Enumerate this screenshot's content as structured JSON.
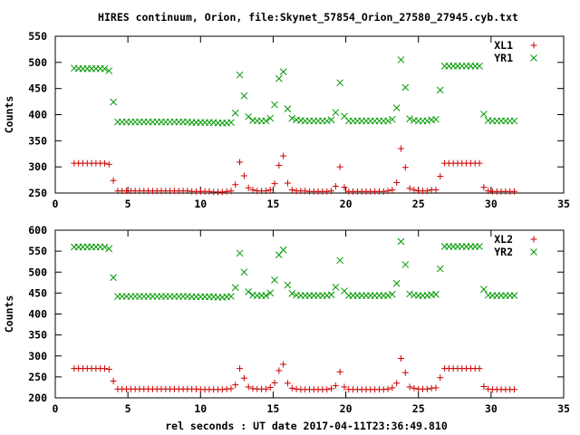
{
  "title": "HIRES continuum, Orion, file:Skynet_57854_Orion_27580_27945.cyb.txt",
  "xlabel": "rel seconds : UT date 2017-04-11T23:36:49.810",
  "colors": {
    "red": "#cc0000",
    "green": "#009900",
    "frame": "#000000"
  },
  "chart_data": [
    {
      "type": "scatter",
      "title": "HIRES continuum, Orion, file:Skynet_57854_Orion_27580_27945.cyb.txt",
      "xlabel": "",
      "ylabel": "Counts",
      "xlim": [
        0,
        35
      ],
      "ylim": [
        250,
        550
      ],
      "xticks": [
        0,
        5,
        10,
        15,
        20,
        25,
        30,
        35
      ],
      "yticks": [
        250,
        300,
        350,
        400,
        450,
        500,
        550
      ],
      "grid": false,
      "legend": "top-right",
      "x": [
        1.3,
        1.6,
        1.9,
        2.2,
        2.5,
        2.8,
        3.1,
        3.4,
        3.7,
        4.0,
        4.3,
        4.6,
        4.9,
        5.2,
        5.5,
        5.8,
        6.1,
        6.4,
        6.7,
        7.0,
        7.3,
        7.6,
        7.9,
        8.2,
        8.5,
        8.8,
        9.1,
        9.4,
        9.7,
        10.0,
        10.3,
        10.6,
        10.9,
        11.2,
        11.5,
        11.8,
        12.1,
        12.4,
        12.7,
        13.0,
        13.3,
        13.6,
        13.9,
        14.2,
        14.5,
        14.8,
        15.1,
        15.4,
        15.7,
        16.0,
        16.3,
        16.6,
        16.9,
        17.2,
        17.5,
        17.8,
        18.1,
        18.4,
        18.7,
        19.0,
        19.3,
        19.6,
        19.9,
        20.2,
        20.5,
        20.8,
        21.1,
        21.4,
        21.7,
        22.0,
        22.3,
        22.6,
        22.9,
        23.2,
        23.5,
        23.8,
        24.1,
        24.4,
        24.7,
        25.0,
        25.3,
        25.6,
        25.9,
        26.2,
        26.5,
        26.8,
        27.1,
        27.4,
        27.7,
        28.0,
        28.3,
        28.6,
        28.9,
        29.2,
        29.5,
        29.8,
        30.1,
        30.4,
        30.7,
        31.0,
        31.3,
        31.6
      ],
      "series": [
        {
          "name": "XL1",
          "marker": "plus",
          "color": "#cc0000",
          "values": [
            307,
            307,
            307,
            307,
            307,
            307,
            307,
            307,
            305,
            274,
            254,
            254,
            254,
            254,
            254,
            254,
            254,
            254,
            254,
            254,
            254,
            254,
            254,
            254,
            254,
            254,
            254,
            253,
            253,
            253,
            253,
            253,
            252,
            252,
            252,
            253,
            254,
            266,
            309,
            283,
            260,
            256,
            254,
            254,
            254,
            256,
            268,
            303,
            321,
            269,
            256,
            254,
            254,
            254,
            253,
            253,
            253,
            253,
            253,
            254,
            263,
            300,
            261,
            253,
            253,
            253,
            253,
            253,
            253,
            253,
            253,
            253,
            254,
            256,
            270,
            335,
            299,
            259,
            256,
            254,
            254,
            254,
            256,
            256,
            282,
            307,
            307,
            307,
            307,
            307,
            307,
            307,
            307,
            307,
            261,
            254,
            253,
            253,
            253,
            253,
            253,
            253
          ]
        },
        {
          "name": "YR1",
          "marker": "cross",
          "color": "#009900",
          "values": [
            489,
            488,
            488,
            488,
            488,
            488,
            488,
            488,
            484,
            424,
            386,
            386,
            386,
            386,
            386,
            386,
            386,
            386,
            386,
            386,
            386,
            386,
            386,
            386,
            386,
            386,
            386,
            385,
            385,
            385,
            385,
            385,
            385,
            384,
            384,
            384,
            385,
            403,
            476,
            436,
            396,
            389,
            388,
            388,
            388,
            393,
            419,
            469,
            482,
            411,
            393,
            390,
            389,
            388,
            388,
            388,
            388,
            388,
            388,
            390,
            404,
            461,
            397,
            388,
            388,
            388,
            388,
            388,
            388,
            388,
            388,
            388,
            388,
            391,
            413,
            505,
            452,
            392,
            389,
            388,
            388,
            388,
            390,
            391,
            447,
            493,
            493,
            493,
            493,
            493,
            493,
            493,
            493,
            493,
            401,
            389,
            388,
            388,
            388,
            388,
            388,
            388
          ]
        }
      ]
    },
    {
      "type": "scatter",
      "title": "",
      "xlabel": "rel seconds : UT date 2017-04-11T23:36:49.810",
      "ylabel": "Counts",
      "xlim": [
        0,
        35
      ],
      "ylim": [
        200,
        600
      ],
      "xticks": [
        0,
        5,
        10,
        15,
        20,
        25,
        30,
        35
      ],
      "yticks": [
        200,
        250,
        300,
        350,
        400,
        450,
        500,
        550,
        600
      ],
      "grid": false,
      "legend": "top-right",
      "x": [
        1.3,
        1.6,
        1.9,
        2.2,
        2.5,
        2.8,
        3.1,
        3.4,
        3.7,
        4.0,
        4.3,
        4.6,
        4.9,
        5.2,
        5.5,
        5.8,
        6.1,
        6.4,
        6.7,
        7.0,
        7.3,
        7.6,
        7.9,
        8.2,
        8.5,
        8.8,
        9.1,
        9.4,
        9.7,
        10.0,
        10.3,
        10.6,
        10.9,
        11.2,
        11.5,
        11.8,
        12.1,
        12.4,
        12.7,
        13.0,
        13.3,
        13.6,
        13.9,
        14.2,
        14.5,
        14.8,
        15.1,
        15.4,
        15.7,
        16.0,
        16.3,
        16.6,
        16.9,
        17.2,
        17.5,
        17.8,
        18.1,
        18.4,
        18.7,
        19.0,
        19.3,
        19.6,
        19.9,
        20.2,
        20.5,
        20.8,
        21.1,
        21.4,
        21.7,
        22.0,
        22.3,
        22.6,
        22.9,
        23.2,
        23.5,
        23.8,
        24.1,
        24.4,
        24.7,
        25.0,
        25.3,
        25.6,
        25.9,
        26.2,
        26.5,
        26.8,
        27.1,
        27.4,
        27.7,
        28.0,
        28.3,
        28.6,
        28.9,
        29.2,
        29.5,
        29.8,
        30.1,
        30.4,
        30.7,
        31.0,
        31.3,
        31.6
      ],
      "series": [
        {
          "name": "XL2",
          "marker": "plus",
          "color": "#cc0000",
          "values": [
            270,
            270,
            270,
            270,
            270,
            270,
            270,
            270,
            268,
            240,
            221,
            221,
            221,
            221,
            221,
            221,
            221,
            221,
            221,
            221,
            221,
            221,
            221,
            221,
            221,
            221,
            221,
            221,
            221,
            220,
            220,
            220,
            220,
            220,
            220,
            221,
            222,
            231,
            270,
            247,
            226,
            222,
            221,
            221,
            221,
            225,
            236,
            265,
            280,
            235,
            223,
            221,
            220,
            220,
            220,
            220,
            220,
            220,
            220,
            222,
            229,
            262,
            226,
            220,
            220,
            220,
            220,
            220,
            220,
            220,
            220,
            220,
            221,
            224,
            235,
            294,
            260,
            226,
            223,
            221,
            221,
            221,
            223,
            224,
            248,
            270,
            270,
            270,
            270,
            270,
            270,
            270,
            270,
            270,
            227,
            221,
            220,
            220,
            220,
            220,
            220,
            220
          ]
        },
        {
          "name": "YR2",
          "marker": "cross",
          "color": "#009900",
          "values": [
            560,
            560,
            560,
            560,
            560,
            560,
            560,
            560,
            556,
            487,
            442,
            442,
            442,
            442,
            442,
            442,
            442,
            442,
            442,
            442,
            442,
            442,
            442,
            442,
            442,
            442,
            442,
            441,
            441,
            441,
            441,
            441,
            441,
            440,
            440,
            441,
            442,
            463,
            545,
            500,
            453,
            445,
            444,
            444,
            444,
            450,
            481,
            541,
            553,
            469,
            449,
            445,
            444,
            444,
            444,
            444,
            444,
            444,
            444,
            446,
            464,
            528,
            455,
            444,
            444,
            444,
            444,
            444,
            444,
            444,
            444,
            444,
            444,
            447,
            473,
            573,
            518,
            448,
            445,
            444,
            444,
            444,
            446,
            447,
            508,
            561,
            561,
            561,
            561,
            561,
            561,
            561,
            561,
            561,
            459,
            445,
            444,
            444,
            444,
            444,
            444,
            444
          ]
        }
      ]
    }
  ]
}
